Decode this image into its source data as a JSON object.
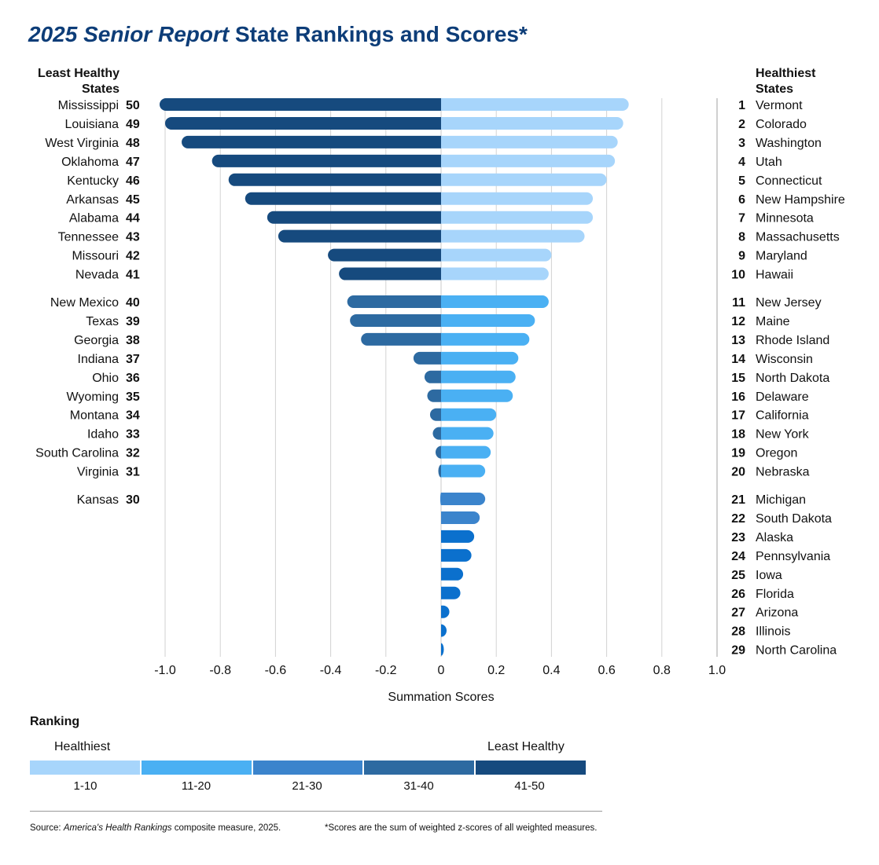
{
  "title": {
    "italic": "2025 Senior Report",
    "rest": " State Rankings and Scores*"
  },
  "left_heading": [
    "Least Healthy",
    "States"
  ],
  "right_heading": [
    "Healthiest",
    "States"
  ],
  "colors": {
    "title": "#0d3d78",
    "tier_1_10": "#a7d5fb",
    "tier_11_20": "#4ab0f3",
    "tier_21_30": "#3b84cc",
    "tier_31_40": "#2d6aa1",
    "tier_41_50": "#164a7e",
    "dark_right": "#0b70cd"
  },
  "chart_data": {
    "type": "bar",
    "orientation": "horizontal",
    "xlabel": "Summation Scores",
    "xlim": [
      -1.0,
      1.0
    ],
    "xticks": [
      "-1.0",
      "-0.8",
      "-0.6",
      "-0.4",
      "-0.2",
      "0",
      "0.2",
      "0.4",
      "0.6",
      "0.8",
      "1.0"
    ],
    "grid": true,
    "least_healthy": [
      {
        "rank": 50,
        "state": "Mississippi",
        "score": -1.02
      },
      {
        "rank": 49,
        "state": "Louisiana",
        "score": -1.0
      },
      {
        "rank": 48,
        "state": "West Virginia",
        "score": -0.94
      },
      {
        "rank": 47,
        "state": "Oklahoma",
        "score": -0.83
      },
      {
        "rank": 46,
        "state": "Kentucky",
        "score": -0.77
      },
      {
        "rank": 45,
        "state": "Arkansas",
        "score": -0.71
      },
      {
        "rank": 44,
        "state": "Alabama",
        "score": -0.63
      },
      {
        "rank": 43,
        "state": "Tennessee",
        "score": -0.59
      },
      {
        "rank": 42,
        "state": "Missouri",
        "score": -0.41
      },
      {
        "rank": 41,
        "state": "Nevada",
        "score": -0.37
      },
      {
        "rank": 40,
        "state": "New Mexico",
        "score": -0.34
      },
      {
        "rank": 39,
        "state": "Texas",
        "score": -0.33
      },
      {
        "rank": 38,
        "state": "Georgia",
        "score": -0.29
      },
      {
        "rank": 37,
        "state": "Indiana",
        "score": -0.1
      },
      {
        "rank": 36,
        "state": "Ohio",
        "score": -0.06
      },
      {
        "rank": 35,
        "state": "Wyoming",
        "score": -0.05
      },
      {
        "rank": 34,
        "state": "Montana",
        "score": -0.04
      },
      {
        "rank": 33,
        "state": "Idaho",
        "score": -0.03
      },
      {
        "rank": 32,
        "state": "South Carolina",
        "score": -0.02
      },
      {
        "rank": 31,
        "state": "Virginia",
        "score": -0.01
      },
      {
        "rank": 30,
        "state": "Kansas",
        "score": -0.003
      }
    ],
    "healthiest": [
      {
        "rank": 1,
        "state": "Vermont",
        "score": 0.68
      },
      {
        "rank": 2,
        "state": "Colorado",
        "score": 0.66
      },
      {
        "rank": 3,
        "state": "Washington",
        "score": 0.64
      },
      {
        "rank": 4,
        "state": "Utah",
        "score": 0.63
      },
      {
        "rank": 5,
        "state": "Connecticut",
        "score": 0.6
      },
      {
        "rank": 6,
        "state": "New Hampshire",
        "score": 0.55
      },
      {
        "rank": 7,
        "state": "Minnesota",
        "score": 0.55
      },
      {
        "rank": 8,
        "state": "Massachusetts",
        "score": 0.52
      },
      {
        "rank": 9,
        "state": "Maryland",
        "score": 0.4
      },
      {
        "rank": 10,
        "state": "Hawaii",
        "score": 0.39
      },
      {
        "rank": 11,
        "state": "New Jersey",
        "score": 0.39
      },
      {
        "rank": 12,
        "state": "Maine",
        "score": 0.34
      },
      {
        "rank": 13,
        "state": "Rhode Island",
        "score": 0.32
      },
      {
        "rank": 14,
        "state": "Wisconsin",
        "score": 0.28
      },
      {
        "rank": 15,
        "state": "North Dakota",
        "score": 0.27
      },
      {
        "rank": 16,
        "state": "Delaware",
        "score": 0.26
      },
      {
        "rank": 17,
        "state": "California",
        "score": 0.2
      },
      {
        "rank": 18,
        "state": "New York",
        "score": 0.19
      },
      {
        "rank": 19,
        "state": "Oregon",
        "score": 0.18
      },
      {
        "rank": 20,
        "state": "Nebraska",
        "score": 0.16
      },
      {
        "rank": 21,
        "state": "Michigan",
        "score": 0.16
      },
      {
        "rank": 22,
        "state": "South Dakota",
        "score": 0.14
      },
      {
        "rank": 23,
        "state": "Alaska",
        "score": 0.12
      },
      {
        "rank": 24,
        "state": "Pennsylvania",
        "score": 0.11
      },
      {
        "rank": 25,
        "state": "Iowa",
        "score": 0.08
      },
      {
        "rank": 26,
        "state": "Florida",
        "score": 0.07
      },
      {
        "rank": 27,
        "state": "Arizona",
        "score": 0.03
      },
      {
        "rank": 28,
        "state": "Illinois",
        "score": 0.02
      },
      {
        "rank": 29,
        "state": "North Carolina",
        "score": 0.01
      }
    ]
  },
  "legend": {
    "title": "Ranking",
    "left": "Healthiest",
    "right": "Least Healthy",
    "segments": [
      "1-10",
      "11-20",
      "21-30",
      "31-40",
      "41-50"
    ]
  },
  "footer": {
    "source_prefix": "Source: ",
    "source_italic": "America's Health Rankings",
    "source_suffix": " composite measure, 2025.",
    "note": "*Scores are the sum of weighted z-scores of all weighted measures."
  }
}
